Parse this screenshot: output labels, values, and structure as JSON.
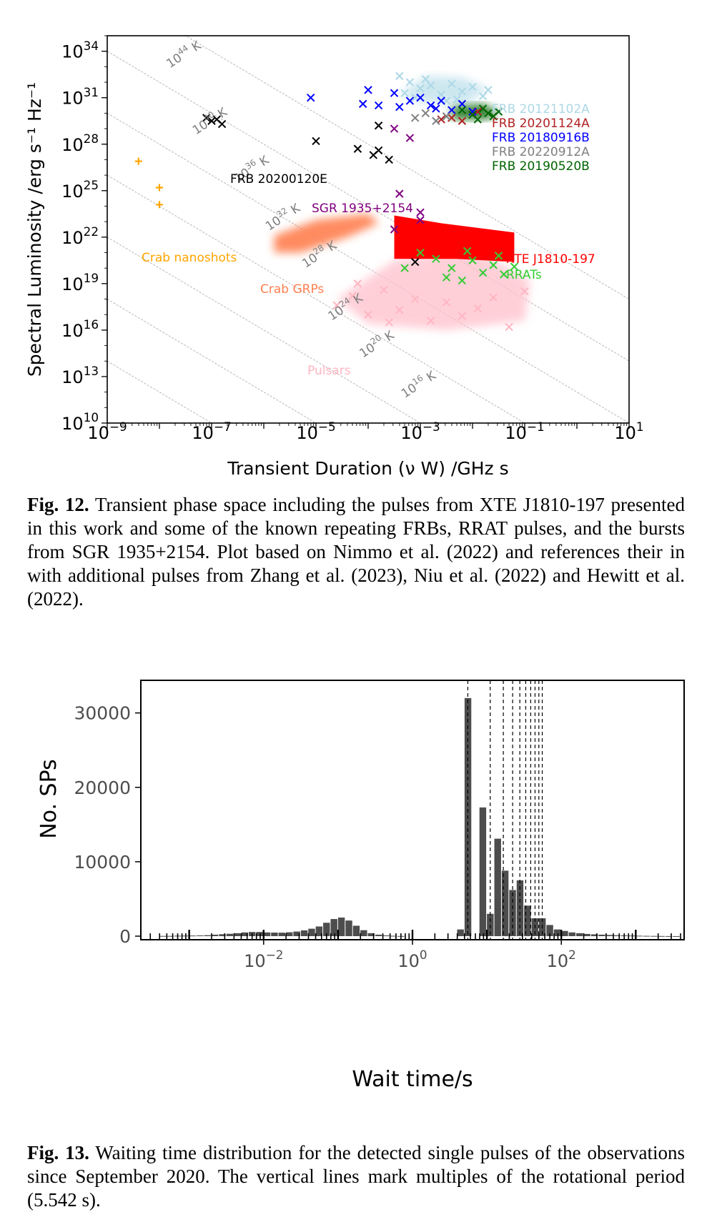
{
  "figure12": {
    "caption_label": "Fig. 12.",
    "caption_text": " Transient phase space including the pulses from XTE J1810-197 presented in this work and some of the known repeating FRBs, RRAT pulses, and the bursts from SGR 1935+2154. Plot based on Nimmo et al. (2022) and references their in with additional pulses from Zhang et al. (2023), Niu et al. (2022) and Hewitt et al. (2022).",
    "chart_data": {
      "type": "scatter",
      "xlabel": "Transient Duration (ν W) /GHz s",
      "ylabel": "Spectral Luminosity /erg s⁻¹ Hz⁻¹",
      "xscale": "log",
      "yscale": "log",
      "xlim": [
        1e-09,
        10
      ],
      "ylim": [
        10000000000.0,
        1e+35
      ],
      "x_ticks": [
        -9,
        -7,
        -5,
        -3,
        -1,
        1
      ],
      "y_ticks": [
        10,
        13,
        16,
        19,
        22,
        25,
        28,
        31,
        34
      ],
      "iso_brightness_lines": [
        {
          "label": "10",
          "sup": "44",
          "unit": " K"
        },
        {
          "label": "10",
          "sup": "40",
          "unit": " K"
        },
        {
          "label": "10",
          "sup": "36",
          "unit": " K"
        },
        {
          "label": "10",
          "sup": "32",
          "unit": " K"
        },
        {
          "label": "10",
          "sup": "28",
          "unit": " K"
        },
        {
          "label": "10",
          "sup": "24",
          "unit": " K"
        },
        {
          "label": "10",
          "sup": "20",
          "unit": " K"
        },
        {
          "label": "10",
          "sup": "16",
          "unit": " K"
        }
      ],
      "series": [
        {
          "name": "FRB 20121102A",
          "color": "#add8e6",
          "marker": "x",
          "points": [
            [
              -3.4,
              32.4
            ],
            [
              -3.2,
              32.0
            ],
            [
              -3.0,
              31.6
            ],
            [
              -2.8,
              31.8
            ],
            [
              -2.6,
              31.2
            ],
            [
              -2.4,
              31.9
            ],
            [
              -2.2,
              31.4
            ],
            [
              -2.0,
              31.7
            ],
            [
              -1.8,
              31.1
            ],
            [
              -2.5,
              30.8
            ],
            [
              -3.1,
              31.0
            ],
            [
              -2.9,
              32.2
            ],
            [
              -2.3,
              30.9
            ],
            [
              -1.7,
              31.5
            ],
            [
              -3.3,
              31.3
            ]
          ]
        },
        {
          "name": "FRB 20201124A",
          "color": "#b22222",
          "marker": "x",
          "points": [
            [
              -2.4,
              29.7
            ],
            [
              -2.2,
              29.5
            ],
            [
              -2.0,
              29.9
            ],
            [
              -2.6,
              29.6
            ],
            [
              -1.9,
              30.1
            ]
          ]
        },
        {
          "name": "FRB 20180916B",
          "color": "#0000ff",
          "marker": "x",
          "points": [
            [
              -5.1,
              31.0
            ],
            [
              -4.0,
              31.5
            ],
            [
              -4.1,
              30.6
            ],
            [
              -3.8,
              30.5
            ],
            [
              -3.4,
              30.4
            ],
            [
              -3.0,
              31.0
            ],
            [
              -2.8,
              30.5
            ],
            [
              -2.6,
              30.8
            ],
            [
              -2.4,
              30.2
            ],
            [
              -2.2,
              30.6
            ],
            [
              -2.0,
              30.1
            ],
            [
              -3.2,
              30.8
            ],
            [
              -2.7,
              30.3
            ],
            [
              -3.5,
              31.3
            ]
          ]
        },
        {
          "name": "FRB 20220912A",
          "color": "#808080",
          "marker": "x",
          "points": [
            [
              -3.1,
              29.7
            ],
            [
              -2.9,
              30.0
            ],
            [
              -2.7,
              29.5
            ],
            [
              -2.5,
              29.8
            ]
          ]
        },
        {
          "name": "FRB 20190520B",
          "color": "#006400",
          "marker": "x",
          "points": [
            [
              -2.2,
              30.2
            ],
            [
              -2.0,
              29.9
            ],
            [
              -1.8,
              30.3
            ],
            [
              -1.6,
              29.8
            ],
            [
              -1.5,
              30.1
            ],
            [
              -1.9,
              29.6
            ],
            [
              -1.7,
              30.0
            ]
          ]
        },
        {
          "name": "FRB 20200120E",
          "color": "#000000",
          "marker": "x",
          "points": [
            [
              -7.1,
              29.7
            ],
            [
              -7.0,
              29.5
            ],
            [
              -6.9,
              29.6
            ],
            [
              -6.8,
              29.3
            ],
            [
              -5.0,
              28.2
            ],
            [
              -4.2,
              27.7
            ],
            [
              -3.9,
              27.3
            ],
            [
              -3.8,
              27.6
            ],
            [
              -3.6,
              27.0
            ],
            [
              -3.8,
              29.2
            ],
            [
              -3.1,
              20.4
            ]
          ]
        },
        {
          "name": "SGR 1935+2154",
          "color": "#800080",
          "marker": "x",
          "points": [
            [
              -3.5,
              29.0
            ],
            [
              -3.2,
              28.4
            ],
            [
              -3.4,
              24.8
            ],
            [
              -3.0,
              23.6
            ],
            [
              -3.0,
              23.1
            ],
            [
              -3.5,
              22.5
            ]
          ]
        },
        {
          "name": "Crab nanoshots",
          "color": "#ffa500",
          "marker": "+",
          "points": [
            [
              -8.4,
              26.9
            ],
            [
              -8.0,
              25.2
            ],
            [
              -8.0,
              24.1
            ]
          ]
        },
        {
          "name": "Crab GRPs",
          "color": "#ff7f50",
          "marker": "cloud",
          "points": []
        },
        {
          "name": "XTE J1810-197",
          "color": "#ff0000",
          "marker": "cloud",
          "points": []
        },
        {
          "name": "RRATs",
          "color": "#32cd32",
          "marker": "x",
          "points": [
            [
              -3.3,
              20.0
            ],
            [
              -3.0,
              21.0
            ],
            [
              -2.7,
              20.6
            ],
            [
              -2.4,
              20.0
            ],
            [
              -2.2,
              19.2
            ],
            [
              -2.0,
              20.5
            ],
            [
              -1.8,
              19.7
            ],
            [
              -1.6,
              20.2
            ],
            [
              -1.4,
              19.6
            ],
            [
              -1.2,
              20.1
            ],
            [
              -2.5,
              19.4
            ],
            [
              -2.1,
              21.1
            ],
            [
              -1.5,
              20.8
            ]
          ]
        },
        {
          "name": "Pulsars",
          "color": "#ffb6c1",
          "marker": "x",
          "points": [
            [
              -4.6,
              17.6
            ],
            [
              -4.3,
              18.2
            ],
            [
              -4.0,
              17.0
            ],
            [
              -3.7,
              18.6
            ],
            [
              -3.4,
              17.3
            ],
            [
              -3.1,
              18.0
            ],
            [
              -2.8,
              16.6
            ],
            [
              -2.5,
              17.8
            ],
            [
              -2.2,
              16.9
            ],
            [
              -1.9,
              17.4
            ],
            [
              -1.6,
              18.1
            ],
            [
              -1.3,
              16.2
            ],
            [
              -1.0,
              18.5
            ],
            [
              -4.2,
              19.0
            ],
            [
              -3.6,
              16.5
            ]
          ]
        }
      ],
      "annotations": [
        "FRB 20121102A",
        "FRB 20201124A",
        "FRB 20180916B",
        "FRB 20220912A",
        "FRB 20190520B",
        "FRB 20200120E",
        "SGR 1935+2154",
        "Crab nanoshots",
        "Crab GRPs",
        "XTE J1810-197",
        "RRATs",
        "Pulsars"
      ]
    }
  },
  "figure13": {
    "caption_label": "Fig. 13.",
    "caption_text": " Waiting time distribution for the detected single pulses of the observations since September 2020. The vertical lines mark multiples of the rotational period (5.542 s).",
    "chart_data": {
      "type": "bar",
      "xlabel": "Wait time/s",
      "ylabel": "No. SPs",
      "xscale": "log",
      "ylim": [
        0,
        34000
      ],
      "y_ticks": [
        0,
        10000,
        20000,
        30000
      ],
      "x_ticks": [
        -2,
        0,
        2
      ],
      "bins_log10": [
        -3.4,
        -3.3,
        -3.2,
        -3.1,
        -3.0,
        -2.9,
        -2.8,
        -2.7,
        -2.6,
        -2.5,
        -2.4,
        -2.3,
        -2.2,
        -2.1,
        -2.0,
        -1.9,
        -1.8,
        -1.7,
        -1.6,
        -1.5,
        -1.4,
        -1.3,
        -1.2,
        -1.1,
        -1.0,
        -0.9,
        -0.8,
        -0.7,
        -0.6,
        -0.5,
        -0.4,
        -0.3,
        -0.2,
        -0.1,
        0.0,
        0.1,
        0.2,
        0.3,
        0.4,
        0.5,
        0.6,
        0.7,
        0.8,
        0.9,
        1.0,
        1.1,
        1.2,
        1.3,
        1.4,
        1.5,
        1.6,
        1.7,
        1.8,
        1.9,
        2.0,
        2.1,
        2.2,
        2.3,
        2.4,
        2.5,
        2.6,
        2.7,
        2.8,
        2.9,
        3.0,
        3.1,
        3.2,
        3.3,
        3.4,
        3.5
      ],
      "values": [
        30,
        30,
        60,
        70,
        80,
        100,
        130,
        200,
        260,
        320,
        400,
        500,
        560,
        560,
        500,
        480,
        470,
        520,
        620,
        780,
        1000,
        1300,
        1800,
        2300,
        2500,
        2100,
        1400,
        800,
        400,
        200,
        100,
        50,
        20,
        0,
        0,
        0,
        0,
        0,
        0,
        0,
        900,
        32000,
        0,
        17300,
        3000,
        13100,
        8800,
        6200,
        7500,
        4100,
        2400,
        2400,
        1500,
        900,
        700,
        500,
        400,
        300,
        240,
        200,
        160,
        120,
        100,
        80,
        60,
        40,
        30,
        20,
        10,
        5
      ],
      "period_multiples_s": [
        5.542,
        11.084,
        16.626,
        22.168,
        27.71,
        33.252,
        38.794,
        44.336,
        49.878,
        55.42
      ]
    }
  }
}
